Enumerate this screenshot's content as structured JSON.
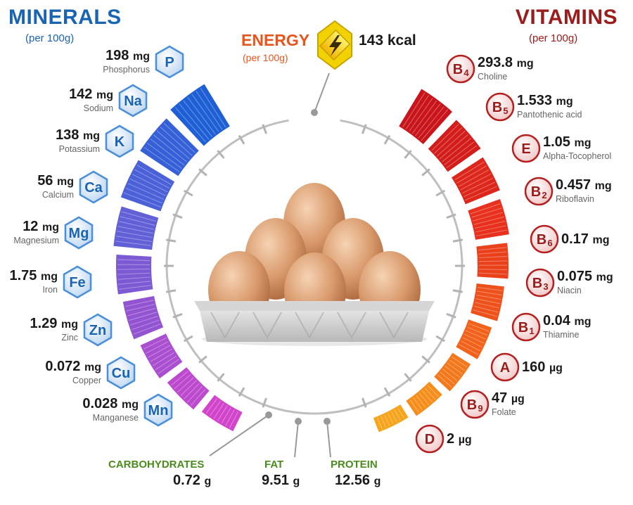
{
  "minerals": {
    "title": "MINERALS",
    "subtitle": "(per 100g)",
    "items": [
      {
        "symbol": "P",
        "value": "198",
        "unit": "mg",
        "name": "Phosphorus"
      },
      {
        "symbol": "Na",
        "value": "142",
        "unit": "mg",
        "name": "Sodium"
      },
      {
        "symbol": "K",
        "value": "138",
        "unit": "mg",
        "name": "Potassium"
      },
      {
        "symbol": "Ca",
        "value": "56",
        "unit": "mg",
        "name": "Calcium"
      },
      {
        "symbol": "Mg",
        "value": "12",
        "unit": "mg",
        "name": "Magnesium"
      },
      {
        "symbol": "Fe",
        "value": "1.75",
        "unit": "mg",
        "name": "Iron"
      },
      {
        "symbol": "Zn",
        "value": "1.29",
        "unit": "mg",
        "name": "Zinc"
      },
      {
        "symbol": "Cu",
        "value": "0.072",
        "unit": "mg",
        "name": "Copper"
      },
      {
        "symbol": "Mn",
        "value": "0.028",
        "unit": "mg",
        "name": "Manganese"
      }
    ]
  },
  "vitamins": {
    "title": "VITAMINS",
    "subtitle": "(per 100g)",
    "items": [
      {
        "letter": "B",
        "sub": "4",
        "value": "293.8",
        "unit": "mg",
        "name": "Choline"
      },
      {
        "letter": "B",
        "sub": "5",
        "value": "1.533",
        "unit": "mg",
        "name": "Pantothenic acid"
      },
      {
        "letter": "E",
        "sub": "",
        "value": "1.05",
        "unit": "mg",
        "name": "Alpha-Tocopherol"
      },
      {
        "letter": "B",
        "sub": "2",
        "value": "0.457",
        "unit": "mg",
        "name": "Riboflavin"
      },
      {
        "letter": "B",
        "sub": "6",
        "value": "0.17",
        "unit": "mg",
        "name": ""
      },
      {
        "letter": "B",
        "sub": "3",
        "value": "0.075",
        "unit": "mg",
        "name": "Niacin"
      },
      {
        "letter": "B",
        "sub": "1",
        "value": "0.04",
        "unit": "mg",
        "name": "Thiamine"
      },
      {
        "letter": "A",
        "sub": "",
        "value": "160",
        "unit": "µg",
        "name": ""
      },
      {
        "letter": "B",
        "sub": "9",
        "value": "47",
        "unit": "µg",
        "name": "Folate"
      },
      {
        "letter": "D",
        "sub": "",
        "value": "2",
        "unit": "µg",
        "name": ""
      }
    ]
  },
  "energy": {
    "title": "ENERGY",
    "subtitle": "(per 100g)",
    "value": "143 kcal"
  },
  "macros": [
    {
      "name": "CARBOHYDRATES",
      "value": "0.72",
      "unit": "g"
    },
    {
      "name": "FAT",
      "value": "9.51",
      "unit": "g"
    },
    {
      "name": "PROTEIN",
      "value": "12.56",
      "unit": "g"
    }
  ],
  "colors": {
    "minerals_title": "#1a64b4",
    "vitamins_title": "#9c1b1b",
    "energy": "#e8551c",
    "macros": "#4a8c1c",
    "mineral_bar_gradient": [
      "#1f5fd6",
      "#5a62d8",
      "#9b52d0",
      "#d244cc"
    ],
    "vitamin_bar_gradient": [
      "#c8141a",
      "#e8301c",
      "#f2621a",
      "#f6a41c"
    ]
  },
  "icons": {
    "energy": "lightning-bolt-icon",
    "center": "egg-carton-illustration"
  }
}
